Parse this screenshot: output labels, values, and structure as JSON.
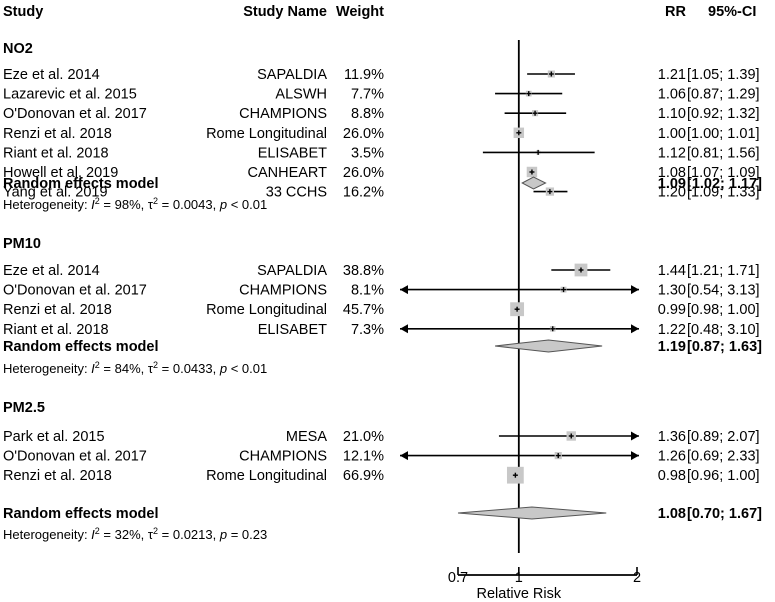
{
  "chart_data": {
    "type": "forest",
    "headers": {
      "study": "Study",
      "study_name": "Study Name",
      "weight": "Weight",
      "rr": "RR",
      "ci": "95%-CI"
    },
    "x_axis": {
      "label": "Relative Risk",
      "scale": "log",
      "ticks": [
        0.7,
        1,
        2
      ],
      "tick_labels": [
        "0.7",
        "1",
        "2"
      ],
      "xlim": [
        0.7,
        2
      ],
      "reference_line": 1
    },
    "groups": [
      {
        "title": "NO2",
        "studies": [
          {
            "study": "Eze et al. 2014",
            "name": "SAPALDIA",
            "weight": "11.9%",
            "weight_value": 11.9,
            "rr": 1.21,
            "lower": 1.05,
            "upper": 1.39,
            "rr_text": "1.21",
            "ci_text": "[1.05; 1.39]"
          },
          {
            "study": "Lazarevic et al. 2015",
            "name": "ALSWH",
            "weight": "7.7%",
            "weight_value": 7.7,
            "rr": 1.06,
            "lower": 0.87,
            "upper": 1.29,
            "rr_text": "1.06",
            "ci_text": "[0.87; 1.29]"
          },
          {
            "study": "O'Donovan et al. 2017",
            "name": "CHAMPIONS",
            "weight": "8.8%",
            "weight_value": 8.8,
            "rr": 1.1,
            "lower": 0.92,
            "upper": 1.32,
            "rr_text": "1.10",
            "ci_text": "[0.92; 1.32]"
          },
          {
            "study": "Renzi et al. 2018",
            "name": "Rome Longitudinal",
            "weight": "26.0%",
            "weight_value": 26.0,
            "rr": 1.0,
            "lower": 1.0,
            "upper": 1.01,
            "rr_text": "1.00",
            "ci_text": "[1.00; 1.01]"
          },
          {
            "study": "Riant et al. 2018",
            "name": "ELISABET",
            "weight": "3.5%",
            "weight_value": 3.5,
            "rr": 1.12,
            "lower": 0.81,
            "upper": 1.56,
            "rr_text": "1.12",
            "ci_text": "[0.81; 1.56]"
          },
          {
            "study": "Howell et al. 2019",
            "name": "CANHEART",
            "weight": "26.0%",
            "weight_value": 26.0,
            "rr": 1.08,
            "lower": 1.07,
            "upper": 1.09,
            "rr_text": "1.08",
            "ci_text": "[1.07; 1.09]"
          },
          {
            "study": "Yang et al. 2019",
            "name": "33 CCHS",
            "weight": "16.2%",
            "weight_value": 16.2,
            "rr": 1.2,
            "lower": 1.09,
            "upper": 1.33,
            "rr_text": "1.20",
            "ci_text": "[1.09; 1.33]"
          }
        ],
        "summary": {
          "label": "Random effects model",
          "rr": 1.09,
          "lower": 1.02,
          "upper": 1.17,
          "rr_text": "1.09",
          "ci_text": "[1.02; 1.17]"
        },
        "heterogeneity": {
          "i2": "98%",
          "tau2": "0.0043",
          "p": "< 0.01"
        }
      },
      {
        "title": "PM10",
        "studies": [
          {
            "study": "Eze et al. 2014",
            "name": "SAPALDIA",
            "weight": "38.8%",
            "weight_value": 38.8,
            "rr": 1.44,
            "lower": 1.21,
            "upper": 1.71,
            "rr_text": "1.44",
            "ci_text": "[1.21; 1.71]"
          },
          {
            "study": "O'Donovan et al. 2017",
            "name": "CHAMPIONS",
            "weight": "8.1%",
            "weight_value": 8.1,
            "rr": 1.3,
            "lower": 0.54,
            "upper": 3.13,
            "rr_text": "1.30",
            "ci_text": "[0.54; 3.13]"
          },
          {
            "study": "Renzi et al. 2018",
            "name": "Rome Longitudinal",
            "weight": "45.7%",
            "weight_value": 45.7,
            "rr": 0.99,
            "lower": 0.98,
            "upper": 1.0,
            "rr_text": "0.99",
            "ci_text": "[0.98; 1.00]"
          },
          {
            "study": "Riant et al. 2018",
            "name": "ELISABET",
            "weight": "7.3%",
            "weight_value": 7.3,
            "rr": 1.22,
            "lower": 0.48,
            "upper": 3.1,
            "rr_text": "1.22",
            "ci_text": "[0.48; 3.10]"
          }
        ],
        "summary": {
          "label": "Random effects model",
          "rr": 1.19,
          "lower": 0.87,
          "upper": 1.63,
          "rr_text": "1.19",
          "ci_text": "[0.87; 1.63]"
        },
        "heterogeneity": {
          "i2": "84%",
          "tau2": "0.0433",
          "p": "< 0.01"
        }
      },
      {
        "title": "PM2.5",
        "studies": [
          {
            "study": "Park et al. 2015",
            "name": "MESA",
            "weight": "21.0%",
            "weight_value": 21.0,
            "rr": 1.36,
            "lower": 0.89,
            "upper": 2.07,
            "rr_text": "1.36",
            "ci_text": "[0.89; 2.07]"
          },
          {
            "study": "O'Donovan et al. 2017",
            "name": "CHAMPIONS",
            "weight": "12.1%",
            "weight_value": 12.1,
            "rr": 1.26,
            "lower": 0.69,
            "upper": 2.33,
            "rr_text": "1.26",
            "ci_text": "[0.69; 2.33]"
          },
          {
            "study": "Renzi et al. 2018",
            "name": "Rome Longitudinal",
            "weight": "66.9%",
            "weight_value": 66.9,
            "rr": 0.98,
            "lower": 0.96,
            "upper": 1.0,
            "rr_text": "0.98",
            "ci_text": "[0.96; 1.00]"
          }
        ],
        "summary": {
          "label": "Random effects model",
          "rr": 1.08,
          "lower": 0.7,
          "upper": 1.67,
          "rr_text": "1.08",
          "ci_text": "[0.70; 1.67]"
        },
        "heterogeneity": {
          "i2": "32%",
          "tau2": "0.0213",
          "p": "= 0.23"
        }
      }
    ],
    "colors": {
      "box": "#c8c8c8",
      "diamond": "#c8c8c8",
      "line": "#000000"
    }
  }
}
